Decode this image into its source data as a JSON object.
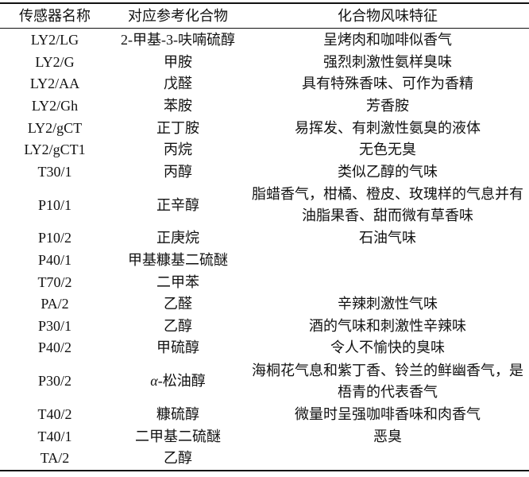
{
  "table": {
    "headers": [
      "传感器名称",
      "对应参考化合物",
      "化合物风味特征"
    ],
    "rows": [
      {
        "sensor": "LY2/LG",
        "compound": "2-甲基-3-呋喃硫醇",
        "flavor": "呈烤肉和咖啡似香气"
      },
      {
        "sensor": "LY2/G",
        "compound": "甲胺",
        "flavor": "强烈刺激性氨样臭味"
      },
      {
        "sensor": "LY2/AA",
        "compound": "戊醛",
        "flavor": "具有特殊香味、可作为香精"
      },
      {
        "sensor": "LY2/Gh",
        "compound": "苯胺",
        "flavor": "芳香胺"
      },
      {
        "sensor": "LY2/gCT",
        "compound": "正丁胺",
        "flavor": "易挥发、有刺激性氨臭的液体"
      },
      {
        "sensor": "LY2/gCT1",
        "compound": "丙烷",
        "flavor": "无色无臭"
      },
      {
        "sensor": "T30/1",
        "compound": "丙醇",
        "flavor": "类似乙醇的气味"
      },
      {
        "sensor": "P10/1",
        "compound": "正辛醇",
        "flavor": "脂蜡香气，柑橘、橙皮、玫瑰样的气息并有油脂果香、甜而微有草香味"
      },
      {
        "sensor": "P10/2",
        "compound": "正庚烷",
        "flavor": "石油气味"
      },
      {
        "sensor": "P40/1",
        "compound": "甲基糠基二硫醚",
        "flavor": ""
      },
      {
        "sensor": "T70/2",
        "compound": "二甲苯",
        "flavor": ""
      },
      {
        "sensor": "PA/2",
        "compound": "乙醛",
        "flavor": "辛辣刺激性气味"
      },
      {
        "sensor": "P30/1",
        "compound": "乙醇",
        "flavor": "酒的气味和刺激性辛辣味"
      },
      {
        "sensor": "P40/2",
        "compound": "甲硫醇",
        "flavor": "令人不愉快的臭味"
      },
      {
        "sensor": "P30/2",
        "compound_prefix": "α",
        "compound": "-松油醇",
        "flavor": "海桐花气息和紫丁香、铃兰的鲜幽香气，是梧青的代表香气"
      },
      {
        "sensor": "T40/2",
        "compound": "糠硫醇",
        "flavor": "微量时呈强咖啡香味和肉香气"
      },
      {
        "sensor": "T40/1",
        "compound": "二甲基二硫醚",
        "flavor": "恶臭"
      },
      {
        "sensor": "TA/2",
        "compound": "乙醇",
        "flavor": ""
      }
    ]
  }
}
